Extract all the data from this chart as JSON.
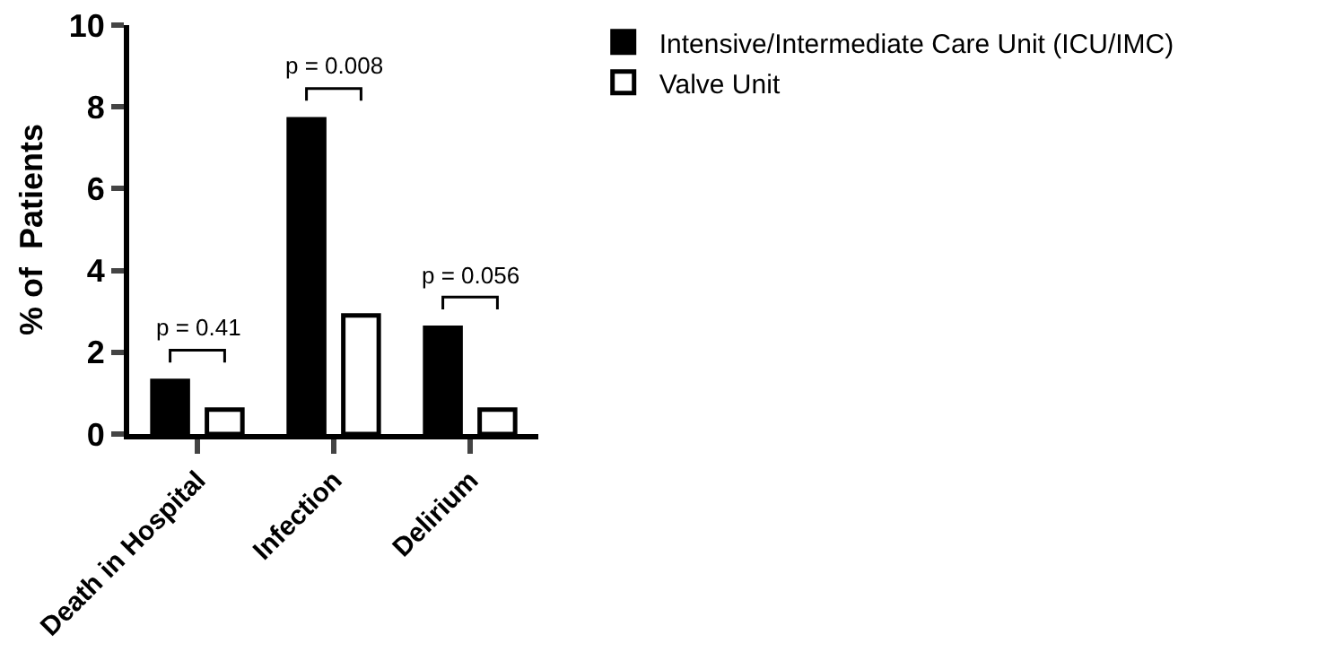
{
  "chart_data": {
    "type": "bar",
    "ylabel": "% of  Patients",
    "categories": [
      "Death in Hospital",
      "Infection",
      "Delirium"
    ],
    "series": [
      {
        "name": "Intensive/Intermediate Care Unit (ICU/IMC)",
        "color": "#000000",
        "values": [
          1.3,
          7.7,
          2.6
        ]
      },
      {
        "name": "Valve Unit",
        "color": "#ffffff",
        "values": [
          0.6,
          2.9,
          0.6
        ]
      }
    ],
    "ylim": [
      0,
      10
    ],
    "yticks": [
      0,
      2,
      4,
      6,
      8,
      10
    ],
    "grid": false,
    "legend": "top right",
    "annotations": [
      "p = 0.41",
      "p = 0.008",
      "p = 0.056"
    ]
  }
}
